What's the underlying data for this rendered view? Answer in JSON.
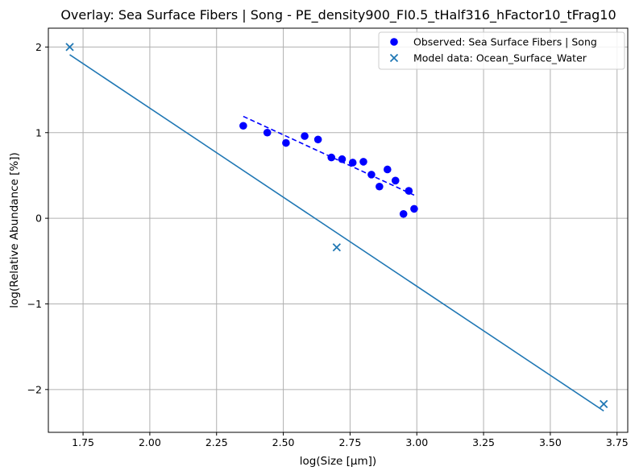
{
  "chart_data": {
    "type": "scatter",
    "title": "Overlay: Sea Surface Fibers | Song - PE_density900_FI0.5_tHalf316_hFactor10_tFrag10",
    "xlabel": "log(Size [μm])",
    "ylabel": "log(Relative Abundance [%])",
    "xlim": [
      1.62,
      3.79
    ],
    "ylim": [
      -2.5,
      2.22
    ],
    "xticks": [
      1.75,
      2.0,
      2.25,
      2.5,
      2.75,
      3.0,
      3.25,
      3.5,
      3.75
    ],
    "xtick_labels": [
      "1.75",
      "2.00",
      "2.25",
      "2.50",
      "2.75",
      "3.00",
      "3.25",
      "3.50",
      "3.75"
    ],
    "yticks": [
      -2,
      -1,
      0,
      1,
      2
    ],
    "ytick_labels": [
      "−2",
      "−1",
      "0",
      "1",
      "2"
    ],
    "grid": true,
    "legend_position": "top-right",
    "series": [
      {
        "name": "Observed: Sea Surface Fibers | Song",
        "kind": "scatter",
        "marker": "circle",
        "color": "#0000ff",
        "x": [
          2.35,
          2.44,
          2.51,
          2.58,
          2.63,
          2.68,
          2.72,
          2.76,
          2.8,
          2.83,
          2.86,
          2.89,
          2.92,
          2.95,
          2.97,
          2.99
        ],
        "y": [
          1.08,
          1.0,
          0.88,
          0.96,
          0.92,
          0.71,
          0.69,
          0.65,
          0.66,
          0.51,
          0.37,
          0.57,
          0.44,
          0.05,
          0.32,
          0.11
        ]
      },
      {
        "kind": "line",
        "style": "dashed",
        "color": "#0000ff",
        "x": [
          2.35,
          2.99
        ],
        "y": [
          1.19,
          0.27
        ]
      },
      {
        "name": "Model data: Ocean_Surface_Water",
        "kind": "scatter",
        "marker": "x",
        "color": "#1f77b4",
        "x": [
          1.7,
          2.7,
          3.7
        ],
        "y": [
          2.0,
          -0.34,
          -2.17
        ]
      },
      {
        "kind": "line",
        "style": "solid",
        "color": "#1f77b4",
        "x": [
          1.7,
          3.7
        ],
        "y": [
          1.91,
          -2.25
        ]
      }
    ]
  }
}
